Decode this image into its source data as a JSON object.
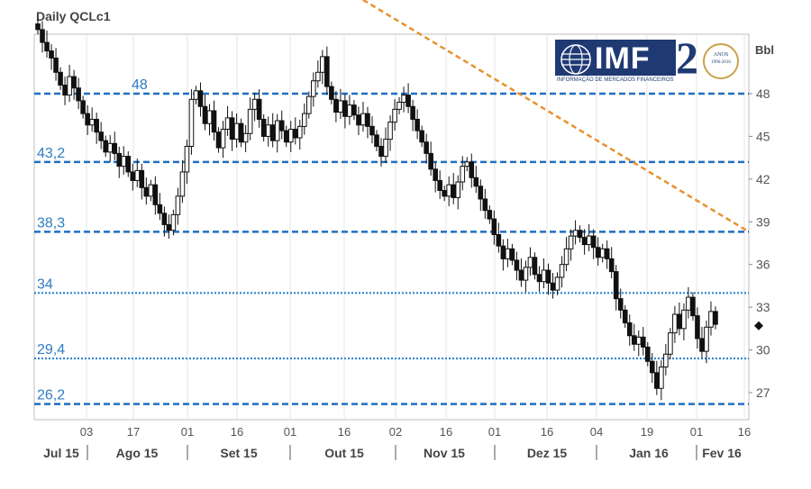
{
  "chart_data": {
    "type": "candlestick",
    "title": "Daily QCLc1",
    "unit": "Bbl",
    "ylim": [
      25,
      54
    ],
    "y_ticks": [
      27,
      30,
      33,
      36,
      39,
      42,
      45,
      48
    ],
    "x_tick_days": [
      "03",
      "17",
      "01",
      "16",
      "01",
      "16",
      "02",
      "16",
      "01",
      "16",
      "04",
      "19",
      "01",
      "16"
    ],
    "months": [
      "Jul 15",
      "Ago 15",
      "Set 15",
      "Out 15",
      "Nov 15",
      "Dez 15",
      "Jan 16",
      "Fev 16"
    ],
    "levels": [
      {
        "value": 48,
        "label": "48",
        "style": "dashed",
        "color": "#1f6fc4"
      },
      {
        "value": 43.2,
        "label": "43,2",
        "style": "dashed",
        "color": "#1f6fc4"
      },
      {
        "value": 38.3,
        "label": "38,3",
        "style": "dashed",
        "color": "#1f6fc4"
      },
      {
        "value": 34,
        "label": "34",
        "style": "dotted",
        "color": "#2f86d0"
      },
      {
        "value": 29.4,
        "label": "29,4",
        "style": "dotted",
        "color": "#2f86d0"
      },
      {
        "value": 26.2,
        "label": "26,2",
        "style": "dashed",
        "color": "#1f6fc4"
      }
    ],
    "trendline": {
      "from_price": 58.5,
      "to_price": 38.3,
      "color": "#e8912f"
    },
    "current_marker": 31.7,
    "closes": [
      52.5,
      51.6,
      51.0,
      50.5,
      49.5,
      48.6,
      47.9,
      49.2,
      48.4,
      47.5,
      46.6,
      45.8,
      46.2,
      45.3,
      44.7,
      43.9,
      44.5,
      43.8,
      42.9,
      43.6,
      42.5,
      41.9,
      42.6,
      41.4,
      40.8,
      41.6,
      40.2,
      39.6,
      38.8,
      38.4,
      39.5,
      40.8,
      42.5,
      44.3,
      47.6,
      48.2,
      47.1,
      45.9,
      46.8,
      45.3,
      44.2,
      45.5,
      46.3,
      44.8,
      45.9,
      44.6,
      45.2,
      46.9,
      47.6,
      46.2,
      45.0,
      45.8,
      44.7,
      46.1,
      45.4,
      44.6,
      45.5,
      44.9,
      45.7,
      46.6,
      47.8,
      48.9,
      49.5,
      50.6,
      48.5,
      47.6,
      46.7,
      47.5,
      46.4,
      47.2,
      46.5,
      45.8,
      46.6,
      45.7,
      45.1,
      44.3,
      43.6,
      44.8,
      46.0,
      46.9,
      47.4,
      47.9,
      47.1,
      46.2,
      45.4,
      44.6,
      43.8,
      42.7,
      41.9,
      41.2,
      40.8,
      41.6,
      40.7,
      41.8,
      42.9,
      43.2,
      42.1,
      41.5,
      40.6,
      39.8,
      39.2,
      38.1,
      37.3,
      36.4,
      37.1,
      36.3,
      35.6,
      34.9,
      35.8,
      36.5,
      35.3,
      34.8,
      35.6,
      34.7,
      34.2,
      35.1,
      36.0,
      37.1,
      38.0,
      38.4,
      37.9,
      37.4,
      38.0,
      37.2,
      36.5,
      37.1,
      36.4,
      35.5,
      33.6,
      32.8,
      31.9,
      31.0,
      30.4,
      30.9,
      30.2,
      29.2,
      28.4,
      27.3,
      28.8,
      29.7,
      31.2,
      32.5,
      31.5,
      32.8,
      33.7,
      32.4,
      30.8,
      29.9,
      31.6,
      32.7,
      31.8
    ]
  }
}
